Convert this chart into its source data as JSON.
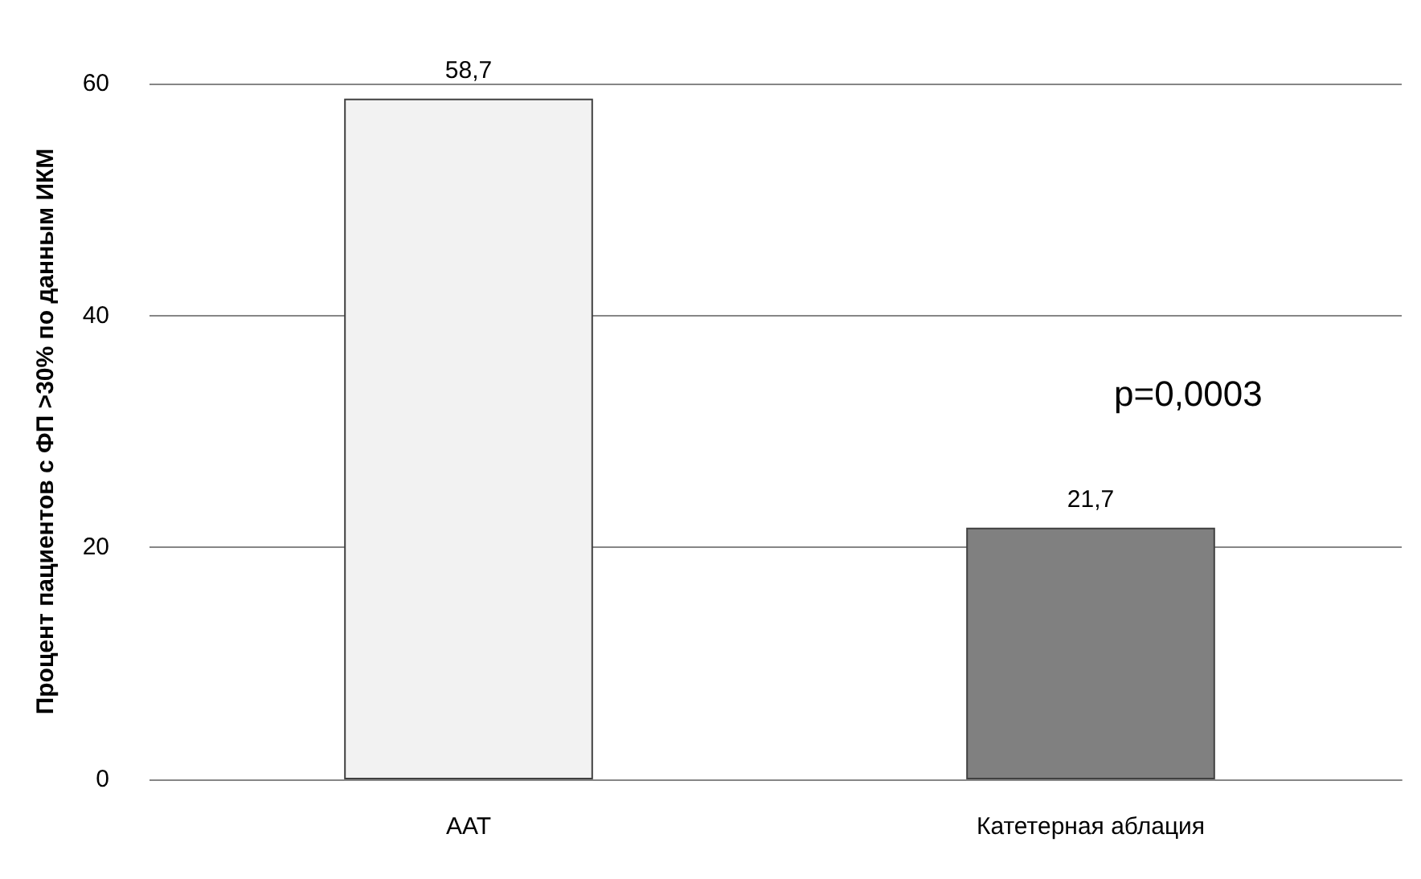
{
  "chart_data": {
    "type": "bar",
    "ylabel": "Процент пациентов с ФП >30% по данным ИКМ",
    "categories": [
      "ААТ",
      "Катетерная аблация"
    ],
    "values": [
      58.7,
      21.7
    ],
    "colors": [
      "#f2f2f2",
      "#808080"
    ],
    "value_labels": [
      "58,7",
      "21,7"
    ],
    "annotations": [
      "p=0,0003"
    ],
    "ylim": [
      0,
      60
    ],
    "yticks": [
      0,
      20,
      40,
      60
    ],
    "grid": "y"
  }
}
